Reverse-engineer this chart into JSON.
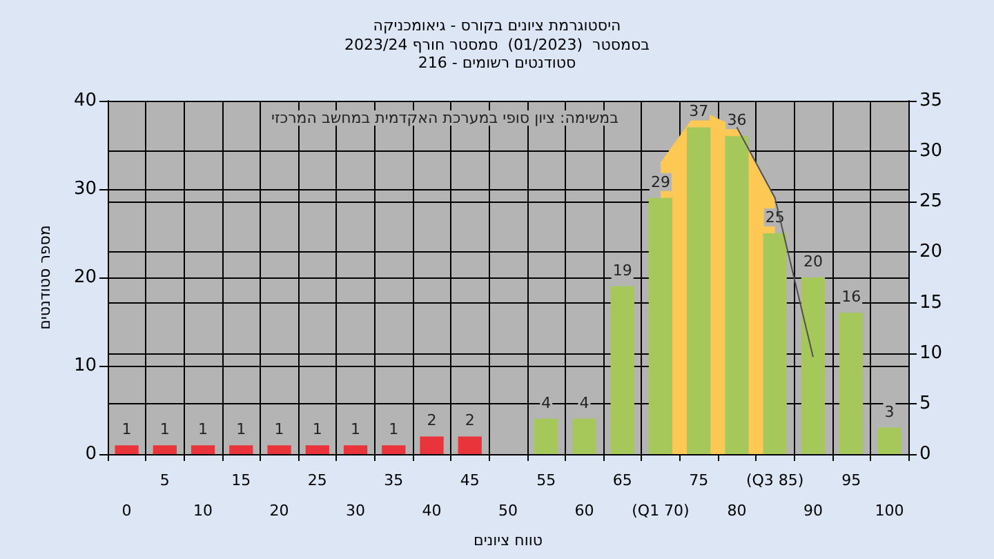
{
  "chart_data": {
    "type": "bar",
    "title": "היסטוגרמת ציונים בקורס - גיאומכניקה",
    "subtitle": "בסמסטר  (01/2023)  סמסטר חורף 2023/24\nסטודנטים רשומים - 216",
    "xlabel": "טווח ציונים",
    "ylabel": "מספר סטודנטים",
    "annotations": [
      "במשימה: ציון סופי במערכת האקדמית במחשב המרכזי"
    ],
    "categories": [
      "0",
      "5",
      "10",
      "15",
      "20",
      "25",
      "30",
      "35",
      "40",
      "45",
      "50",
      "55",
      "60",
      "65",
      "(Q1 70)",
      "75",
      "80",
      "(Q3 85)",
      "90",
      "95",
      "100"
    ],
    "series": [
      {
        "type": "area",
        "color": "#fdc853",
        "values": [
          null,
          null,
          null,
          null,
          null,
          null,
          null,
          null,
          null,
          null,
          null,
          null,
          null,
          null,
          33,
          39,
          37,
          29,
          null,
          null,
          null
        ]
      },
      {
        "type": "line",
        "color": "#505050",
        "values": [
          null,
          null,
          null,
          null,
          null,
          null,
          null,
          null,
          null,
          null,
          null,
          null,
          null,
          null,
          null,
          null,
          37,
          29,
          11,
          null,
          null
        ]
      },
      {
        "values": [
          1,
          1,
          1,
          1,
          1,
          1,
          1,
          1,
          2,
          2,
          0,
          4,
          4,
          19,
          29,
          37,
          36,
          25,
          20,
          16,
          3
        ],
        "colors": [
          "#e8343a",
          "#e8343a",
          "#e8343a",
          "#e8343a",
          "#e8343a",
          "#e8343a",
          "#e8343a",
          "#e8343a",
          "#e8343a",
          "#e8343a",
          "#e8343a",
          "#a6c85a",
          "#a6c85a",
          "#a6c85a",
          "#a6c85a",
          "#a6c85a",
          "#a6c85a",
          "#a6c85a",
          "#a6c85a",
          "#a6c85a",
          "#a6c85a"
        ],
        "value_labels": [
          "1",
          "1",
          "1",
          "1",
          "1",
          "1",
          "1",
          "1",
          "2",
          "2",
          null,
          "4",
          "4",
          "19",
          "29",
          "37",
          "36",
          "25",
          "20",
          "16",
          "3"
        ]
      }
    ],
    "ylim": [
      0,
      40
    ],
    "yticks": [
      0,
      10,
      20,
      30,
      40
    ],
    "y2lim": [
      0,
      35
    ],
    "y2ticks": [
      0,
      5,
      10,
      15,
      20,
      25,
      30,
      35
    ],
    "grid": true
  }
}
